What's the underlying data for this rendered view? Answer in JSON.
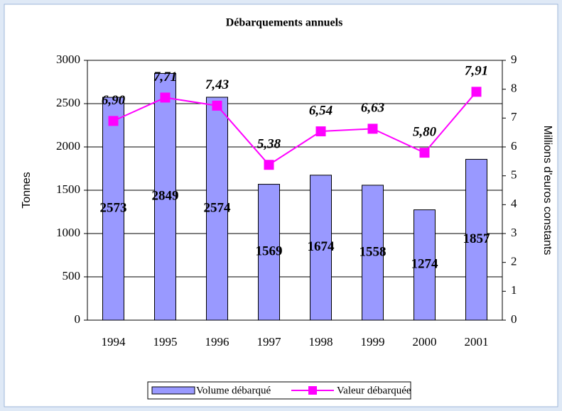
{
  "chart_data": {
    "type": "combo",
    "title": "Débarquements annuels",
    "categories": [
      "1994",
      "1995",
      "1996",
      "1997",
      "1998",
      "1999",
      "2000",
      "2001"
    ],
    "series": [
      {
        "name": "Volume débarqué",
        "type": "bar",
        "color": "#9999ff",
        "values": [
          2573,
          2849,
          2574,
          1569,
          1674,
          1558,
          1274,
          1857
        ]
      },
      {
        "name": "Valeur débarquée",
        "type": "line",
        "axis": "y2",
        "color": "#ff00ff",
        "values": [
          6.9,
          7.71,
          7.43,
          5.38,
          6.54,
          6.63,
          5.8,
          7.91
        ],
        "value_labels": [
          "6,90",
          "7,71",
          "7,43",
          "5,38",
          "6,54",
          "6,63",
          "5,80",
          "7,91"
        ]
      }
    ],
    "ylabel": "Tonnes",
    "y2label": "Millions d'euros constants",
    "ylim": [
      0,
      3000
    ],
    "yticks": [
      0,
      500,
      1000,
      1500,
      2000,
      2500,
      3000
    ],
    "y2lim": [
      0,
      9
    ],
    "y2ticks": [
      0,
      1,
      2,
      3,
      4,
      5,
      6,
      7,
      8,
      9
    ],
    "grid": true,
    "legend": "bottom"
  }
}
